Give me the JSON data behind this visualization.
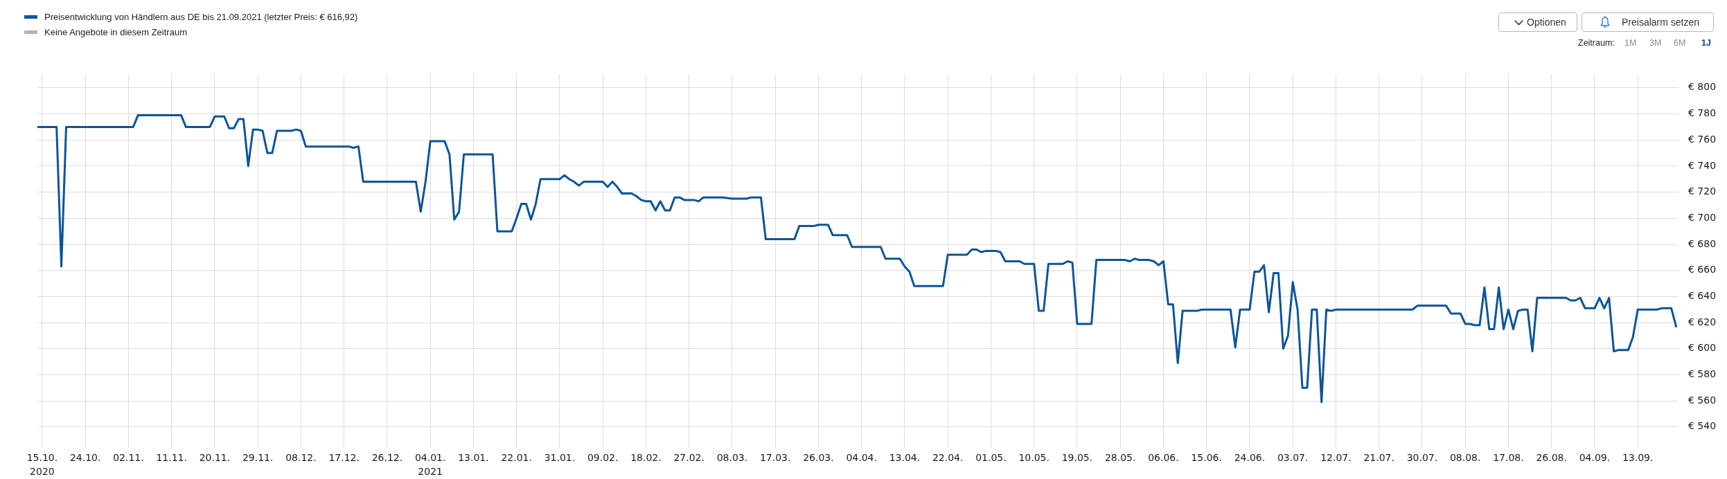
{
  "chart_data": {
    "type": "line",
    "x": [
      "2020-10-14",
      "2020-10-18",
      "2020-10-19",
      "2020-10-20",
      "2020-11-03",
      "2020-11-04",
      "2020-11-13",
      "2020-11-14",
      "2020-11-19",
      "2020-11-20",
      "2020-11-22",
      "2020-11-23",
      "2020-11-24",
      "2020-11-25",
      "2020-11-26",
      "2020-11-27",
      "2020-11-28",
      "2020-11-29",
      "2020-11-30",
      "2020-12-01",
      "2020-12-02",
      "2020-12-03",
      "2020-12-06",
      "2020-12-07",
      "2020-12-08",
      "2020-12-09",
      "2020-12-18",
      "2020-12-19",
      "2020-12-20",
      "2020-12-21",
      "2021-01-01",
      "2021-01-02",
      "2021-01-03",
      "2021-01-04",
      "2021-01-07",
      "2021-01-08",
      "2021-01-09",
      "2021-01-10",
      "2021-01-11",
      "2021-01-17",
      "2021-01-18",
      "2021-01-21",
      "2021-01-22",
      "2021-01-23",
      "2021-01-24",
      "2021-01-25",
      "2021-01-26",
      "2021-01-27",
      "2021-01-28",
      "2021-01-31",
      "2021-02-01",
      "2021-02-02",
      "2021-02-03",
      "2021-02-04",
      "2021-02-05",
      "2021-02-09",
      "2021-02-10",
      "2021-02-11",
      "2021-02-12",
      "2021-02-13",
      "2021-02-15",
      "2021-02-16",
      "2021-02-17",
      "2021-02-18",
      "2021-02-19",
      "2021-02-20",
      "2021-02-21",
      "2021-02-22",
      "2021-02-23",
      "2021-02-24",
      "2021-02-25",
      "2021-02-26",
      "2021-02-28",
      "2021-03-01",
      "2021-03-02",
      "2021-03-06",
      "2021-03-08",
      "2021-03-11",
      "2021-03-12",
      "2021-03-14",
      "2021-03-15",
      "2021-03-21",
      "2021-03-22",
      "2021-03-25",
      "2021-03-26",
      "2021-03-28",
      "2021-03-29",
      "2021-04-01",
      "2021-04-02",
      "2021-04-08",
      "2021-04-09",
      "2021-04-12",
      "2021-04-13",
      "2021-04-14",
      "2021-04-15",
      "2021-04-17",
      "2021-04-21",
      "2021-04-22",
      "2021-04-26",
      "2021-04-27",
      "2021-04-28",
      "2021-04-29",
      "2021-04-30",
      "2021-05-02",
      "2021-05-03",
      "2021-05-04",
      "2021-05-07",
      "2021-05-08",
      "2021-05-10",
      "2021-05-11",
      "2021-05-12",
      "2021-05-13",
      "2021-05-16",
      "2021-05-17",
      "2021-05-18",
      "2021-05-19",
      "2021-05-22",
      "2021-05-23",
      "2021-05-29",
      "2021-05-30",
      "2021-05-31",
      "2021-06-01",
      "2021-06-03",
      "2021-06-04",
      "2021-06-05",
      "2021-06-06",
      "2021-06-07",
      "2021-06-08",
      "2021-06-09",
      "2021-06-10",
      "2021-06-13",
      "2021-06-14",
      "2021-06-20",
      "2021-06-21",
      "2021-06-22",
      "2021-06-24",
      "2021-06-25",
      "2021-06-26",
      "2021-06-27",
      "2021-06-28",
      "2021-06-29",
      "2021-06-30",
      "2021-07-01",
      "2021-07-02",
      "2021-07-03",
      "2021-07-04",
      "2021-07-05",
      "2021-07-06",
      "2021-07-07",
      "2021-07-08",
      "2021-07-09",
      "2021-07-10",
      "2021-07-11",
      "2021-07-12",
      "2021-07-28",
      "2021-07-29",
      "2021-08-04",
      "2021-08-05",
      "2021-08-07",
      "2021-08-08",
      "2021-08-09",
      "2021-08-10",
      "2021-08-11",
      "2021-08-12",
      "2021-08-13",
      "2021-08-14",
      "2021-08-15",
      "2021-08-16",
      "2021-08-17",
      "2021-08-18",
      "2021-08-19",
      "2021-08-20",
      "2021-08-21",
      "2021-08-22",
      "2021-08-23",
      "2021-08-29",
      "2021-08-30",
      "2021-08-31",
      "2021-09-01",
      "2021-09-02",
      "2021-09-04",
      "2021-09-05",
      "2021-09-06",
      "2021-09-07",
      "2021-09-08",
      "2021-09-09",
      "2021-09-11",
      "2021-09-12",
      "2021-09-13",
      "2021-09-17",
      "2021-09-18",
      "2021-09-20",
      "2021-09-21"
    ],
    "series": [
      {
        "name": "Preisentwicklung von Händlern aus DE bis 21.09.2021 (letzter Preis: € 616,92)",
        "color": "#0a5599",
        "values": [
          770,
          770,
          663,
          770,
          770,
          779,
          779,
          770,
          770,
          778,
          778,
          769,
          769,
          776,
          776,
          740,
          768,
          768,
          767,
          750,
          750,
          767,
          767,
          768,
          767,
          755,
          755,
          754,
          755,
          728,
          728,
          705,
          728,
          759,
          759,
          749,
          699,
          705,
          749,
          749,
          690,
          690,
          700,
          711,
          711,
          699,
          711,
          730,
          730,
          730,
          733,
          730,
          728,
          725,
          728,
          728,
          724,
          728,
          724,
          719,
          719,
          717,
          714,
          713,
          713,
          706,
          713,
          706,
          706,
          716,
          716,
          714,
          714,
          713,
          716,
          716,
          715,
          715,
          716,
          716,
          684,
          684,
          694,
          694,
          695,
          695,
          687,
          687,
          678,
          678,
          669,
          669,
          663,
          659,
          648,
          648,
          648,
          672,
          672,
          676,
          676,
          674,
          675,
          675,
          674,
          667,
          667,
          665,
          665,
          629,
          629,
          665,
          665,
          667,
          666,
          619,
          619,
          668,
          668,
          667,
          669,
          668,
          668,
          667,
          664,
          667,
          634,
          634,
          589,
          629,
          629,
          630,
          630,
          601,
          630,
          630,
          659,
          659,
          664,
          628,
          658,
          658,
          600,
          610,
          651,
          630,
          570,
          570,
          630,
          630,
          559,
          630,
          629,
          630,
          630,
          633,
          633,
          627,
          627,
          619,
          619,
          618,
          618,
          647,
          615,
          615,
          647,
          615,
          630,
          615,
          629,
          630,
          630,
          598,
          639,
          639,
          637,
          637,
          639,
          631,
          631,
          639,
          631,
          639,
          598,
          599,
          599,
          609,
          630,
          630,
          631,
          631,
          617
        ]
      },
      {
        "name": "Keine Angebote in diesem Zeitraum",
        "color": "#b3b3b3",
        "values": [
          null,
          null,
          null,
          null,
          null,
          null,
          null,
          null,
          null,
          null,
          null,
          null,
          null,
          null,
          null,
          null,
          null,
          null,
          null,
          null,
          null,
          null,
          null,
          null,
          null,
          null,
          null,
          null,
          null,
          null,
          null,
          null,
          null,
          null,
          null,
          null,
          null,
          null,
          null,
          null,
          null,
          null,
          null,
          null,
          null,
          null,
          null,
          null,
          null,
          null,
          null,
          null,
          null,
          null,
          null,
          null,
          null,
          null,
          null,
          null,
          null,
          null,
          null,
          null,
          null,
          null,
          null,
          null,
          null,
          null,
          null,
          null,
          null,
          null,
          null,
          null,
          null,
          null,
          null,
          null,
          null,
          null,
          null,
          null,
          null,
          null,
          null,
          null,
          null,
          null,
          null,
          null,
          null,
          null,
          null,
          null,
          null,
          null,
          null,
          null,
          null,
          null,
          null,
          null,
          null,
          null,
          null,
          null,
          null,
          null,
          null,
          null,
          null,
          null,
          null,
          null,
          null,
          null,
          null,
          null,
          null,
          null,
          null,
          null,
          null,
          null,
          null,
          null,
          null,
          null,
          null,
          null,
          null,
          null,
          null,
          null,
          null,
          null,
          null,
          null,
          null,
          null,
          null,
          null,
          null,
          null,
          null,
          null,
          null,
          null,
          null,
          null,
          null,
          null,
          null,
          null,
          null,
          null,
          null,
          null,
          null,
          null,
          null,
          null,
          null,
          null,
          null,
          null,
          null,
          null,
          null,
          null,
          null,
          null,
          null,
          null,
          null,
          null,
          null,
          null,
          null,
          null,
          null,
          null,
          null,
          null,
          null,
          null,
          null,
          null,
          null,
          null,
          null
        ]
      }
    ],
    "xlim": [
      "2020-10-14",
      "2021-09-21T12:00"
    ],
    "xticks": [
      {
        "value": "2020-10-15",
        "label": "15.10.\n2020"
      },
      {
        "value": "2020-10-24",
        "label": "24.10."
      },
      {
        "value": "2020-11-02",
        "label": "02.11."
      },
      {
        "value": "2020-11-11",
        "label": "11.11."
      },
      {
        "value": "2020-11-20",
        "label": "20.11."
      },
      {
        "value": "2020-11-29",
        "label": "29.11."
      },
      {
        "value": "2020-12-08",
        "label": "08.12."
      },
      {
        "value": "2020-12-17",
        "label": "17.12."
      },
      {
        "value": "2020-12-26",
        "label": "26.12."
      },
      {
        "value": "2021-01-04",
        "label": "04.01.\n2021"
      },
      {
        "value": "2021-01-13",
        "label": "13.01."
      },
      {
        "value": "2021-01-22",
        "label": "22.01."
      },
      {
        "value": "2021-01-31",
        "label": "31.01."
      },
      {
        "value": "2021-02-09",
        "label": "09.02."
      },
      {
        "value": "2021-02-18",
        "label": "18.02."
      },
      {
        "value": "2021-02-27",
        "label": "27.02."
      },
      {
        "value": "2021-03-08",
        "label": "08.03."
      },
      {
        "value": "2021-03-17",
        "label": "17.03."
      },
      {
        "value": "2021-03-26",
        "label": "26.03."
      },
      {
        "value": "2021-04-04",
        "label": "04.04."
      },
      {
        "value": "2021-04-13",
        "label": "13.04."
      },
      {
        "value": "2021-04-22",
        "label": "22.04."
      },
      {
        "value": "2021-05-01",
        "label": "01.05."
      },
      {
        "value": "2021-05-10",
        "label": "10.05."
      },
      {
        "value": "2021-05-19",
        "label": "19.05."
      },
      {
        "value": "2021-05-28",
        "label": "28.05."
      },
      {
        "value": "2021-06-06",
        "label": "06.06."
      },
      {
        "value": "2021-06-15",
        "label": "15.06."
      },
      {
        "value": "2021-06-24",
        "label": "24.06."
      },
      {
        "value": "2021-07-03",
        "label": "03.07."
      },
      {
        "value": "2021-07-12",
        "label": "12.07."
      },
      {
        "value": "2021-07-21",
        "label": "21.07."
      },
      {
        "value": "2021-07-30",
        "label": "30.07."
      },
      {
        "value": "2021-08-08",
        "label": "08.08."
      },
      {
        "value": "2021-08-17",
        "label": "17.08."
      },
      {
        "value": "2021-08-26",
        "label": "26.08."
      },
      {
        "value": "2021-09-04",
        "label": "04.09."
      },
      {
        "value": "2021-09-13",
        "label": "13.09."
      }
    ],
    "ylim": [
      524,
      810
    ],
    "yticks": [
      {
        "value": 540,
        "label": "€ 540"
      },
      {
        "value": 560,
        "label": "€ 560"
      },
      {
        "value": 580,
        "label": "€ 580"
      },
      {
        "value": 600,
        "label": "€ 600"
      },
      {
        "value": 620,
        "label": "€ 620"
      },
      {
        "value": 640,
        "label": "€ 640"
      },
      {
        "value": 660,
        "label": "€ 660"
      },
      {
        "value": 680,
        "label": "€ 680"
      },
      {
        "value": 700,
        "label": "€ 700"
      },
      {
        "value": 720,
        "label": "€ 720"
      },
      {
        "value": 740,
        "label": "€ 740"
      },
      {
        "value": 760,
        "label": "€ 760"
      },
      {
        "value": 780,
        "label": "€ 780"
      },
      {
        "value": 800,
        "label": "€ 800"
      }
    ],
    "grid": true,
    "legend": "top left",
    "annotations": [
      "Optionen",
      "Preisalarm setzen",
      "Zeitraum:",
      "1M",
      "3M",
      "6M",
      "1J"
    ]
  }
}
